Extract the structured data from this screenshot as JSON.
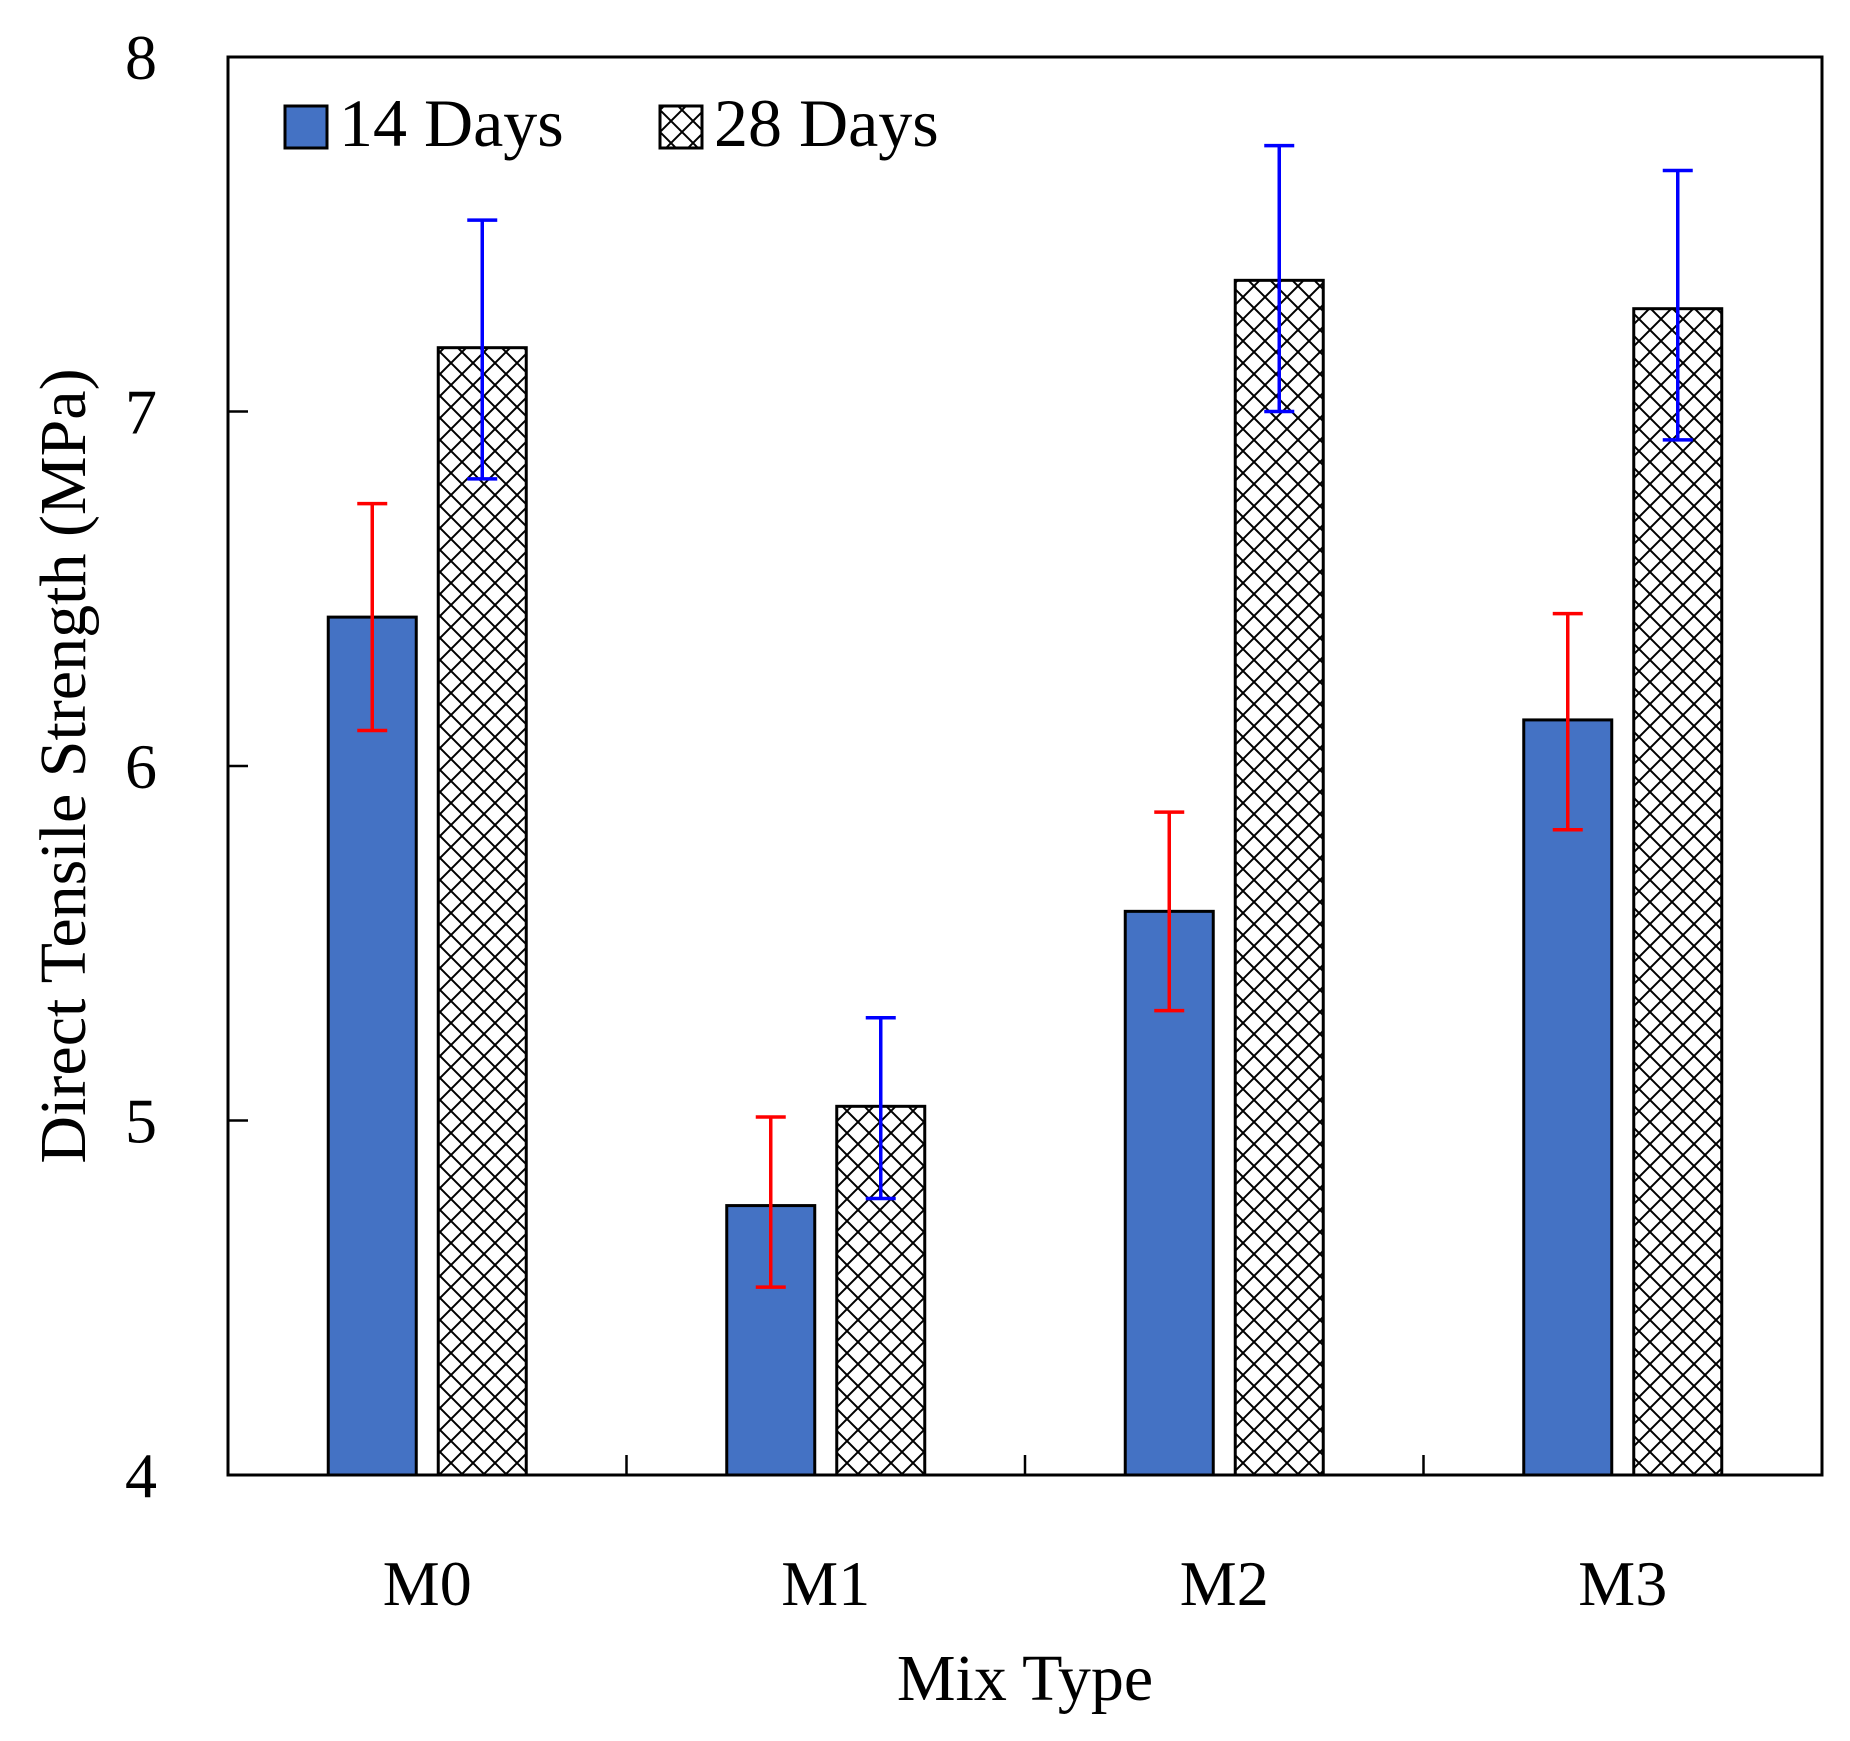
{
  "chart_data": {
    "type": "bar",
    "title": "",
    "xlabel": "Mix Type",
    "ylabel": "Direct Tensile Strength (MPa)",
    "ylim": [
      4,
      8
    ],
    "yticks": [
      "4",
      "5",
      "6",
      "7",
      "8"
    ],
    "categories": [
      "M0",
      "M1",
      "M2",
      "M3"
    ],
    "legend_position": "top-left",
    "grid": false,
    "series": [
      {
        "name": "14 Days",
        "fill": "#4472c4",
        "pattern": "solid",
        "error_color": "#ff0000",
        "values": [
          6.42,
          4.76,
          5.59,
          6.13
        ],
        "error_low": [
          6.1,
          4.53,
          5.31,
          5.82
        ],
        "error_high": [
          6.74,
          5.01,
          5.87,
          6.43
        ]
      },
      {
        "name": "28 Days",
        "fill": "#ffffff",
        "pattern": "crosshatch",
        "error_color": "#0000ff",
        "values": [
          7.18,
          5.04,
          7.37,
          7.29
        ],
        "error_low": [
          6.81,
          4.78,
          7.0,
          6.92
        ],
        "error_high": [
          7.54,
          5.29,
          7.75,
          7.68
        ]
      }
    ]
  }
}
